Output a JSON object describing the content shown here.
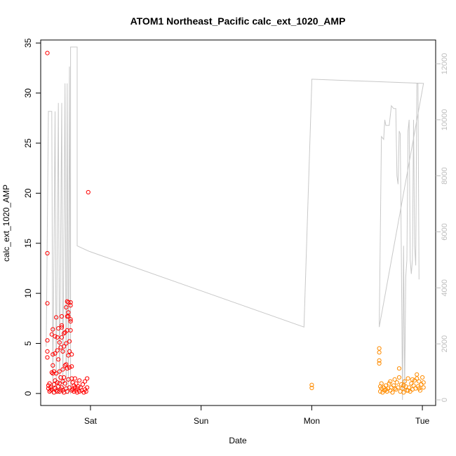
{
  "chart_data": {
    "type": "scatter",
    "title": "ATOM1 Northeast_Pacific calc_ext_1020_AMP",
    "xlabel": "Date",
    "ylabel": "calc_ext_1020_AMP",
    "x_tick_labels": [
      "Sat",
      "Sun",
      "Mon",
      "Tue"
    ],
    "xlim": [
      -0.45,
      3.12
    ],
    "ylim": [
      -1.2,
      35.3
    ],
    "y_ticks": [
      0,
      5,
      10,
      15,
      20,
      25,
      30,
      35
    ],
    "y2lim": [
      -200,
      12850
    ],
    "y2_ticks": [
      0,
      2000,
      4000,
      6000,
      8000,
      10000,
      12000
    ],
    "grid": false,
    "legend": "none",
    "colors": {
      "early": "#ff0000",
      "late": "#ff8c00",
      "line": "#c8c8c8",
      "axis": "#000000",
      "axis_right": "#bdbdbd"
    },
    "series": [
      {
        "color": "#ff0000",
        "points": [
          [
            -0.39,
            34.0
          ],
          [
            -0.39,
            14.0
          ],
          [
            -0.39,
            9.0
          ],
          [
            -0.39,
            5.3
          ],
          [
            -0.39,
            4.2
          ],
          [
            -0.39,
            3.6
          ],
          [
            -0.38,
            0.8
          ],
          [
            -0.38,
            0.5
          ],
          [
            -0.37,
            0.2
          ],
          [
            -0.37,
            1.0
          ],
          [
            -0.36,
            0.6
          ],
          [
            -0.36,
            0.3
          ],
          [
            -0.35,
            5.9
          ],
          [
            -0.35,
            2.1
          ],
          [
            -0.35,
            0.4
          ],
          [
            -0.34,
            6.4
          ],
          [
            -0.34,
            2.0
          ],
          [
            -0.34,
            2.8
          ],
          [
            -0.34,
            3.9
          ],
          [
            -0.33,
            2.2
          ],
          [
            -0.33,
            0.9
          ],
          [
            -0.33,
            0.1
          ],
          [
            -0.32,
            5.7
          ],
          [
            -0.32,
            4.0
          ],
          [
            -0.32,
            1.3
          ],
          [
            -0.32,
            0.5
          ],
          [
            -0.31,
            7.6
          ],
          [
            -0.31,
            2.0
          ],
          [
            -0.31,
            0.3
          ],
          [
            -0.3,
            5.6
          ],
          [
            -0.3,
            4.3
          ],
          [
            -0.3,
            1.1
          ],
          [
            -0.3,
            0.2
          ],
          [
            -0.29,
            3.4
          ],
          [
            -0.29,
            6.5
          ],
          [
            -0.29,
            0.7
          ],
          [
            -0.28,
            5.1
          ],
          [
            -0.28,
            2.2
          ],
          [
            -0.28,
            1.0
          ],
          [
            -0.28,
            0.2
          ],
          [
            -0.27,
            4.6
          ],
          [
            -0.27,
            1.6
          ],
          [
            -0.27,
            0.4
          ],
          [
            -0.26,
            6.8
          ],
          [
            -0.26,
            6.6
          ],
          [
            -0.26,
            5.6
          ],
          [
            -0.26,
            7.7
          ],
          [
            -0.26,
            0.6
          ],
          [
            -0.25,
            4.2
          ],
          [
            -0.25,
            2.4
          ],
          [
            -0.25,
            0.3
          ],
          [
            -0.25,
            1.2
          ],
          [
            -0.24,
            6.0
          ],
          [
            -0.24,
            4.7
          ],
          [
            -0.24,
            1.6
          ],
          [
            -0.24,
            0.1
          ],
          [
            -0.23,
            6.1
          ],
          [
            -0.23,
            2.8
          ],
          [
            -0.23,
            1.0
          ],
          [
            -0.22,
            8.6
          ],
          [
            -0.22,
            5.0
          ],
          [
            -0.22,
            2.9
          ],
          [
            -0.22,
            0.5
          ],
          [
            -0.21,
            9.2
          ],
          [
            -0.21,
            7.7
          ],
          [
            -0.21,
            6.3
          ],
          [
            -0.21,
            2.5
          ],
          [
            -0.21,
            0.2
          ],
          [
            -0.2,
            9.1
          ],
          [
            -0.2,
            8.1
          ],
          [
            -0.2,
            7.7
          ],
          [
            -0.2,
            3.8
          ],
          [
            -0.2,
            1.4
          ],
          [
            -0.19,
            5.2
          ],
          [
            -0.19,
            4.2
          ],
          [
            -0.19,
            2.6
          ],
          [
            -0.19,
            0.6
          ],
          [
            -0.18,
            9.1
          ],
          [
            -0.18,
            8.8
          ],
          [
            -0.18,
            7.2
          ],
          [
            -0.18,
            7.4
          ],
          [
            -0.18,
            6.3
          ],
          [
            -0.17,
            3.9
          ],
          [
            -0.17,
            2.7
          ],
          [
            -0.17,
            1.5
          ],
          [
            -0.17,
            0.3
          ],
          [
            -0.16,
            1.1
          ],
          [
            -0.16,
            0.4
          ],
          [
            -0.15,
            0.8
          ],
          [
            -0.15,
            0.2
          ],
          [
            -0.14,
            1.5
          ],
          [
            -0.14,
            0.6
          ],
          [
            -0.13,
            0.3
          ],
          [
            -0.13,
            1.0
          ],
          [
            -0.12,
            0.5
          ],
          [
            -0.12,
            0.1
          ],
          [
            -0.02,
            20.1
          ],
          [
            -0.03,
            1.5
          ],
          [
            -0.03,
            0.6
          ],
          [
            -0.04,
            0.2
          ],
          [
            -0.05,
            1.2
          ],
          [
            -0.05,
            0.4
          ],
          [
            -0.06,
            0.1
          ],
          [
            -0.07,
            0.9
          ],
          [
            -0.08,
            0.3
          ],
          [
            -0.09,
            0.6
          ],
          [
            -0.1,
            1.3
          ],
          [
            -0.1,
            0.2
          ],
          [
            -0.11,
            0.7
          ]
        ]
      },
      {
        "color": "#ff8c00",
        "points": [
          [
            2.0,
            0.85
          ],
          [
            2.0,
            0.55
          ],
          [
            2.61,
            4.5
          ],
          [
            2.61,
            4.1
          ],
          [
            2.61,
            3.3
          ],
          [
            2.61,
            3.0
          ],
          [
            2.62,
            0.7
          ],
          [
            2.62,
            0.2
          ],
          [
            2.63,
            0.5
          ],
          [
            2.64,
            0.1
          ],
          [
            2.65,
            0.6
          ],
          [
            2.66,
            0.3
          ],
          [
            2.67,
            0.8
          ],
          [
            2.68,
            0.2
          ],
          [
            2.69,
            0.5
          ],
          [
            2.7,
            1.0
          ],
          [
            2.71,
            0.3
          ],
          [
            2.72,
            0.6
          ],
          [
            2.73,
            0.1
          ],
          [
            2.74,
            0.8
          ],
          [
            2.75,
            1.4
          ],
          [
            2.76,
            0.4
          ],
          [
            2.77,
            1.1
          ],
          [
            2.78,
            0.6
          ],
          [
            2.79,
            2.5
          ],
          [
            2.79,
            1.6
          ],
          [
            2.8,
            0.2
          ],
          [
            2.81,
            0.9
          ],
          [
            2.82,
            0.5
          ],
          [
            2.83,
            0.1
          ],
          [
            2.84,
            1.2
          ],
          [
            2.85,
            0.7
          ],
          [
            2.86,
            0.3
          ],
          [
            2.87,
            1.5
          ],
          [
            2.88,
            0.6
          ],
          [
            2.89,
            0.2
          ],
          [
            2.9,
            1.0
          ],
          [
            2.91,
            0.4
          ],
          [
            2.92,
            0.8
          ],
          [
            2.93,
            1.3
          ],
          [
            2.94,
            0.5
          ],
          [
            2.95,
            1.9
          ],
          [
            2.95,
            1.5
          ],
          [
            2.96,
            0.7
          ],
          [
            2.97,
            1.2
          ],
          [
            2.98,
            0.3
          ],
          [
            2.99,
            0.9
          ],
          [
            3.0,
            1.6
          ],
          [
            3.01,
            0.6
          ],
          [
            3.01,
            1.1
          ],
          [
            2.63,
            1.0
          ],
          [
            2.67,
            0.4
          ],
          [
            2.71,
            1.2
          ],
          [
            2.75,
            0.5
          ],
          [
            2.83,
            0.8
          ],
          [
            2.87,
            0.3
          ],
          [
            2.91,
            1.4
          ],
          [
            2.97,
            0.5
          ]
        ]
      }
    ],
    "line_series": {
      "axis": "right",
      "color": "#c8c8c8",
      "points": [
        [
          -0.4,
          1900
        ],
        [
          -0.38,
          10300
        ],
        [
          -0.35,
          10300
        ],
        [
          -0.34,
          200
        ],
        [
          -0.32,
          10300
        ],
        [
          -0.31,
          200
        ],
        [
          -0.29,
          10600
        ],
        [
          -0.28,
          200
        ],
        [
          -0.26,
          10600
        ],
        [
          -0.25,
          200
        ],
        [
          -0.23,
          11300
        ],
        [
          -0.22,
          200
        ],
        [
          -0.21,
          11300
        ],
        [
          -0.2,
          200
        ],
        [
          -0.19,
          11900
        ],
        [
          -0.18,
          200
        ],
        [
          -0.18,
          12600
        ],
        [
          -0.12,
          12600
        ],
        [
          -0.12,
          5500
        ],
        [
          -0.01,
          5300
        ],
        [
          1.93,
          2600
        ],
        [
          2.0,
          11300
        ],
        [
          2.0,
          11450
        ],
        [
          3.01,
          11300
        ],
        [
          2.61,
          2600
        ],
        [
          2.63,
          9400
        ],
        [
          2.65,
          9300
        ],
        [
          2.66,
          10000
        ],
        [
          2.67,
          9800
        ],
        [
          2.7,
          9800
        ],
        [
          2.72,
          10500
        ],
        [
          2.74,
          10400
        ],
        [
          2.76,
          10400
        ],
        [
          2.77,
          8000
        ],
        [
          2.78,
          7700
        ],
        [
          2.79,
          9600
        ],
        [
          2.8,
          9500
        ],
        [
          2.81,
          5200
        ],
        [
          2.82,
          0
        ],
        [
          2.83,
          5500
        ],
        [
          2.84,
          300
        ],
        [
          2.85,
          4400
        ],
        [
          2.86,
          5000
        ],
        [
          2.87,
          9600
        ],
        [
          2.88,
          10000
        ],
        [
          2.89,
          5000
        ],
        [
          2.9,
          4500
        ],
        [
          2.91,
          5000
        ],
        [
          2.92,
          10000
        ],
        [
          2.93,
          5500
        ],
        [
          2.94,
          4800
        ],
        [
          2.95,
          11300
        ],
        [
          2.96,
          11300
        ],
        [
          2.97,
          4300
        ]
      ]
    }
  }
}
